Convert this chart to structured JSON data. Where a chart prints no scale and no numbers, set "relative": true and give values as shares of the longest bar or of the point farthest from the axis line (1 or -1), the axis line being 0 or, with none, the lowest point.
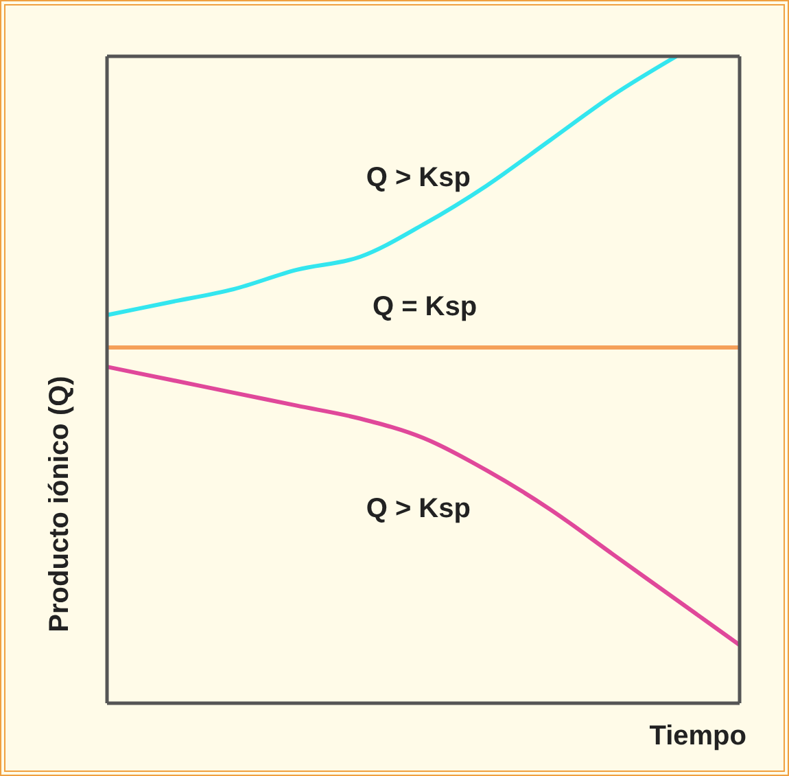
{
  "chart_data": {
    "type": "line",
    "relative": true,
    "xlabel": "Tiempo",
    "ylabel": "Producto iónico (Q)",
    "categories": [
      null,
      null,
      null,
      null,
      null,
      null,
      null,
      null,
      null,
      null,
      null
    ],
    "series": [
      {
        "color": "#33e6ef",
        "values": [
          0.6,
          0.62,
          0.64,
          0.67,
          0.69,
          0.74,
          0.8,
          0.87,
          0.94,
          1,
          null
        ]
      },
      {
        "color": "#f5a05a",
        "values": [
          0.55,
          0.55,
          0.55,
          0.55,
          0.55,
          0.55,
          0.55,
          0.55,
          0.55,
          0.55,
          0.55
        ]
      },
      {
        "color": "#e0489a",
        "values": [
          0.52,
          0.5,
          0.48,
          0.46,
          0.44,
          0.41,
          0.36,
          0.3,
          0.23,
          0.16,
          0.09
        ]
      }
    ],
    "annotations": [
      "Q > Ksp",
      "Q = Ksp",
      "Q > Ksp"
    ],
    "marker": "none",
    "line_style": "solid"
  }
}
